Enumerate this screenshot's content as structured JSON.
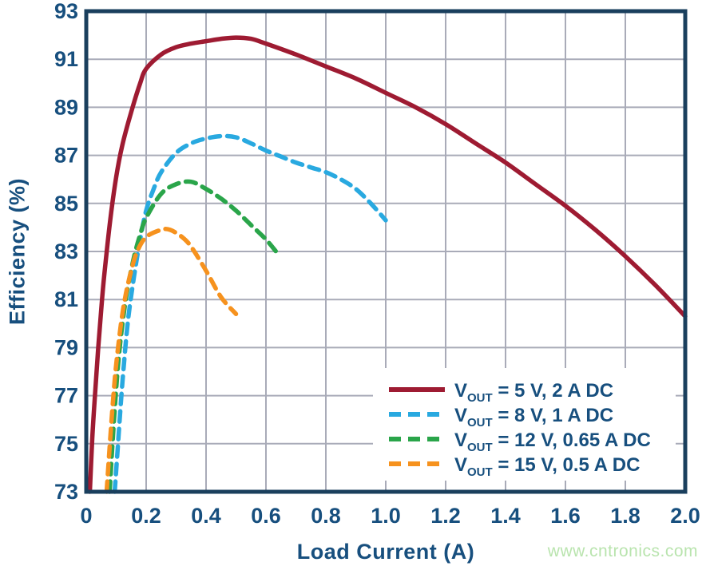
{
  "colors": {
    "text_navy": "#174f7e",
    "border_navy": "#1a3f5d",
    "grid": "#a9abb8",
    "background": "#ffffff",
    "watermark_green": "#b9e4ae",
    "series_red": "#9e1b32",
    "series_cyan": "#29a9e0",
    "series_green": "#2aa54a",
    "series_orange": "#f6921e"
  },
  "watermark": {
    "text": "www.cntronics.com"
  },
  "chart_data": {
    "type": "line",
    "title": "",
    "xlabel": "Load Current (A)",
    "ylabel": "Efficiency (%)",
    "xlim": [
      0,
      2.0
    ],
    "ylim": [
      73,
      93
    ],
    "grid": true,
    "legend_position": "lower right",
    "x_ticks": [
      0,
      0.2,
      0.4,
      0.6,
      0.8,
      1.0,
      1.2,
      1.4,
      1.6,
      1.8,
      2.0
    ],
    "x_tick_labels": [
      "0",
      "0.2",
      "0.4",
      "0.6",
      "0.8",
      "1.0",
      "1.2",
      "1.4",
      "1.6",
      "1.8",
      "2.0"
    ],
    "y_ticks": [
      93,
      91,
      89,
      87,
      85,
      83,
      81,
      79,
      77,
      75,
      73
    ],
    "y_tick_labels": [
      "93",
      "91",
      "89",
      "87",
      "85",
      "83",
      "81",
      "79",
      "77",
      "75",
      "73"
    ],
    "series": [
      {
        "name": "VOUT = 5 V, 2 A DC",
        "color": "#9e1b32",
        "style": "solid",
        "points": [
          [
            0.012,
            73
          ],
          [
            0.02,
            75.2
          ],
          [
            0.03,
            77.2
          ],
          [
            0.04,
            79.0
          ],
          [
            0.05,
            80.6
          ],
          [
            0.06,
            82.0
          ],
          [
            0.08,
            84.3
          ],
          [
            0.1,
            86.1
          ],
          [
            0.12,
            87.4
          ],
          [
            0.15,
            88.8
          ],
          [
            0.18,
            90.0
          ],
          [
            0.2,
            90.6
          ],
          [
            0.25,
            91.2
          ],
          [
            0.3,
            91.5
          ],
          [
            0.35,
            91.65
          ],
          [
            0.4,
            91.75
          ],
          [
            0.45,
            91.85
          ],
          [
            0.5,
            91.9
          ],
          [
            0.55,
            91.85
          ],
          [
            0.6,
            91.65
          ],
          [
            0.7,
            91.2
          ],
          [
            0.8,
            90.7
          ],
          [
            0.9,
            90.2
          ],
          [
            1.0,
            89.6
          ],
          [
            1.1,
            89.0
          ],
          [
            1.2,
            88.3
          ],
          [
            1.3,
            87.5
          ],
          [
            1.4,
            86.7
          ],
          [
            1.5,
            85.8
          ],
          [
            1.6,
            84.9
          ],
          [
            1.7,
            83.9
          ],
          [
            1.8,
            82.8
          ],
          [
            1.9,
            81.6
          ],
          [
            2.0,
            80.3
          ]
        ]
      },
      {
        "name": "VOUT = 8 V, 1 A DC",
        "color": "#29a9e0",
        "style": "dashed",
        "points": [
          [
            0.095,
            73
          ],
          [
            0.105,
            74.8
          ],
          [
            0.115,
            76.6
          ],
          [
            0.125,
            78.2
          ],
          [
            0.14,
            80.2
          ],
          [
            0.16,
            82.0
          ],
          [
            0.18,
            83.5
          ],
          [
            0.2,
            84.7
          ],
          [
            0.225,
            85.6
          ],
          [
            0.25,
            86.3
          ],
          [
            0.3,
            87.1
          ],
          [
            0.35,
            87.5
          ],
          [
            0.4,
            87.7
          ],
          [
            0.45,
            87.8
          ],
          [
            0.5,
            87.75
          ],
          [
            0.55,
            87.5
          ],
          [
            0.6,
            87.2
          ],
          [
            0.65,
            86.95
          ],
          [
            0.7,
            86.7
          ],
          [
            0.75,
            86.5
          ],
          [
            0.8,
            86.3
          ],
          [
            0.85,
            86.0
          ],
          [
            0.9,
            85.6
          ],
          [
            0.95,
            85.0
          ],
          [
            1.0,
            84.3
          ]
        ]
      },
      {
        "name": "VOUT = 12 V, 0.65 A DC",
        "color": "#2aa54a",
        "style": "dashed",
        "points": [
          [
            0.078,
            73
          ],
          [
            0.09,
            75.5
          ],
          [
            0.1,
            77.3
          ],
          [
            0.11,
            78.8
          ],
          [
            0.125,
            80.4
          ],
          [
            0.14,
            81.6
          ],
          [
            0.16,
            82.8
          ],
          [
            0.18,
            83.7
          ],
          [
            0.2,
            84.4
          ],
          [
            0.25,
            85.4
          ],
          [
            0.3,
            85.8
          ],
          [
            0.35,
            85.9
          ],
          [
            0.4,
            85.6
          ],
          [
            0.45,
            85.2
          ],
          [
            0.5,
            84.7
          ],
          [
            0.55,
            84.1
          ],
          [
            0.6,
            83.5
          ],
          [
            0.64,
            82.9
          ]
        ]
      },
      {
        "name": "VOUT = 15 V, 0.5 A DC",
        "color": "#f6921e",
        "style": "dashed",
        "points": [
          [
            0.068,
            73
          ],
          [
            0.08,
            75.2
          ],
          [
            0.09,
            76.9
          ],
          [
            0.1,
            78.3
          ],
          [
            0.115,
            79.9
          ],
          [
            0.13,
            81.1
          ],
          [
            0.15,
            82.2
          ],
          [
            0.17,
            83.0
          ],
          [
            0.2,
            83.6
          ],
          [
            0.25,
            83.9
          ],
          [
            0.28,
            83.9
          ],
          [
            0.32,
            83.6
          ],
          [
            0.35,
            83.2
          ],
          [
            0.4,
            82.2
          ],
          [
            0.45,
            81.1
          ],
          [
            0.5,
            80.4
          ]
        ]
      }
    ],
    "legend_entries": [
      {
        "pre": "V",
        "sub": "OUT",
        "rest": " = 5 V, 2 A DC"
      },
      {
        "pre": "V",
        "sub": "OUT",
        "rest": " = 8 V, 1 A DC"
      },
      {
        "pre": "V",
        "sub": "OUT",
        "rest": " = 12 V, 0.65 A DC"
      },
      {
        "pre": "V",
        "sub": "OUT",
        "rest": " = 15 V, 0.5 A DC"
      }
    ]
  }
}
